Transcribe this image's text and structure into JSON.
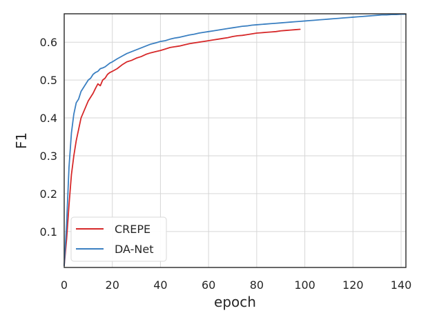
{
  "chart_data": {
    "type": "line",
    "title": "",
    "xlabel": "epoch",
    "ylabel": "F1",
    "xlim": [
      0,
      142
    ],
    "ylim": [
      0.005,
      0.675
    ],
    "xticks": [
      0,
      20,
      40,
      60,
      80,
      100,
      120,
      140
    ],
    "yticks": [
      0.1,
      0.2,
      0.3,
      0.4,
      0.5,
      0.6
    ],
    "xtick_labels": [
      "0",
      "20",
      "40",
      "60",
      "80",
      "100",
      "120",
      "140"
    ],
    "ytick_labels": [
      "0.1",
      "0.2",
      "0.3",
      "0.4",
      "0.5",
      "0.6"
    ],
    "grid": true,
    "legend_position": "lower-left",
    "series": [
      {
        "name": "CREPE",
        "color": "#d62728",
        "x": [
          0,
          1,
          2,
          3,
          4,
          5,
          6,
          7,
          8,
          9,
          10,
          11,
          12,
          13,
          14,
          15,
          16,
          17,
          18,
          19,
          20,
          22,
          24,
          26,
          28,
          30,
          32,
          34,
          36,
          38,
          40,
          42,
          44,
          46,
          48,
          50,
          52,
          54,
          56,
          58,
          60,
          62,
          64,
          66,
          68,
          70,
          72,
          74,
          76,
          78,
          80,
          82,
          84,
          86,
          88,
          90,
          92,
          94,
          96,
          98
        ],
        "values": [
          0.01,
          0.08,
          0.17,
          0.25,
          0.3,
          0.34,
          0.37,
          0.4,
          0.415,
          0.43,
          0.445,
          0.455,
          0.465,
          0.478,
          0.49,
          0.485,
          0.5,
          0.505,
          0.515,
          0.52,
          0.523,
          0.53,
          0.54,
          0.548,
          0.552,
          0.558,
          0.562,
          0.568,
          0.572,
          0.575,
          0.578,
          0.582,
          0.586,
          0.588,
          0.59,
          0.593,
          0.596,
          0.598,
          0.6,
          0.602,
          0.604,
          0.606,
          0.608,
          0.61,
          0.612,
          0.615,
          0.617,
          0.618,
          0.62,
          0.622,
          0.624,
          0.625,
          0.626,
          0.627,
          0.628,
          0.63,
          0.631,
          0.632,
          0.633,
          0.634
        ]
      },
      {
        "name": "DA-Net",
        "color": "#3a7fc1",
        "x": [
          0,
          1,
          2,
          3,
          4,
          5,
          6,
          7,
          8,
          9,
          10,
          11,
          12,
          13,
          14,
          15,
          16,
          17,
          18,
          19,
          20,
          22,
          24,
          26,
          28,
          30,
          32,
          34,
          36,
          38,
          40,
          42,
          44,
          46,
          48,
          50,
          52,
          54,
          56,
          58,
          60,
          62,
          64,
          66,
          68,
          70,
          72,
          74,
          76,
          78,
          80,
          82,
          84,
          86,
          88,
          90,
          92,
          94,
          96,
          98,
          100,
          102,
          104,
          106,
          108,
          110,
          112,
          114,
          116,
          118,
          120,
          122,
          124,
          126,
          128,
          130,
          132,
          134,
          136,
          138,
          140,
          142
        ],
        "values": [
          0.01,
          0.12,
          0.27,
          0.36,
          0.41,
          0.44,
          0.45,
          0.47,
          0.48,
          0.49,
          0.5,
          0.505,
          0.515,
          0.52,
          0.523,
          0.53,
          0.532,
          0.535,
          0.54,
          0.545,
          0.548,
          0.556,
          0.563,
          0.57,
          0.575,
          0.58,
          0.585,
          0.59,
          0.595,
          0.598,
          0.602,
          0.604,
          0.608,
          0.611,
          0.613,
          0.616,
          0.619,
          0.621,
          0.624,
          0.626,
          0.628,
          0.63,
          0.632,
          0.634,
          0.636,
          0.638,
          0.64,
          0.642,
          0.643,
          0.645,
          0.646,
          0.647,
          0.648,
          0.649,
          0.65,
          0.651,
          0.652,
          0.653,
          0.654,
          0.655,
          0.656,
          0.657,
          0.658,
          0.659,
          0.66,
          0.661,
          0.662,
          0.663,
          0.664,
          0.665,
          0.666,
          0.667,
          0.668,
          0.669,
          0.67,
          0.671,
          0.672,
          0.672,
          0.673,
          0.673,
          0.674,
          0.674
        ]
      }
    ]
  }
}
